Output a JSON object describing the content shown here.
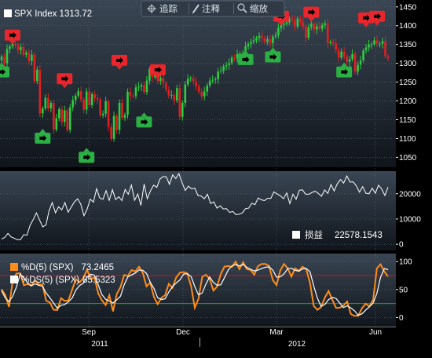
{
  "toolbar": {
    "track_label": "追踪",
    "annotate_label": "注释",
    "zoom_label": "缩放",
    "track_icon": "crosshair-icon",
    "annotate_icon": "pencil-icon",
    "zoom_icon": "magnifier-icon"
  },
  "colors": {
    "background": "#000000",
    "panel_gradient_top": "#3a4654",
    "panel_gradient_bottom": "#10151b",
    "up_candle": "#2ecc40",
    "down_candle": "#e02020",
    "pnl_line": "#ffffff",
    "stoch_d": "#ff8c1a",
    "stoch_ds": "#ffffff",
    "level_high": "#d01010",
    "level_low": "#11b011",
    "sell_marker": "#e8262b",
    "buy_marker": "#2cb045"
  },
  "chart_data": [
    {
      "type": "candlestick",
      "legend": "SPX Index",
      "last_value": "1313.72",
      "ylim": [
        1030,
        1460
      ],
      "yticks": [
        "1450",
        "1400",
        "1350",
        "1300",
        "1250",
        "1200",
        "1150",
        "1100",
        "1050"
      ],
      "closes": [
        1318,
        1300,
        1338,
        1345,
        1352,
        1349,
        1335,
        1343,
        1323,
        1328,
        1306,
        1323,
        1253,
        1283,
        1167,
        1180,
        1208,
        1180,
        1195,
        1124,
        1154,
        1178,
        1144,
        1175,
        1123,
        1183,
        1202,
        1214,
        1226,
        1204,
        1177,
        1225,
        1189,
        1218,
        1207,
        1204,
        1162,
        1166,
        1199,
        1131,
        1099,
        1160,
        1123,
        1195,
        1155,
        1163,
        1224,
        1214,
        1213,
        1236,
        1238,
        1242,
        1224,
        1254,
        1285,
        1263,
        1284,
        1253,
        1261,
        1247,
        1230,
        1215,
        1216,
        1201,
        1234,
        1158,
        1195,
        1244,
        1259,
        1260,
        1252,
        1239,
        1224,
        1212,
        1225,
        1241,
        1254,
        1256,
        1258,
        1278,
        1280,
        1292,
        1295,
        1301,
        1315,
        1313,
        1325,
        1326,
        1326,
        1345,
        1352,
        1357,
        1361,
        1367,
        1373,
        1367,
        1357,
        1364,
        1354,
        1371,
        1374,
        1394,
        1402,
        1405,
        1409,
        1419,
        1416,
        1398,
        1419,
        1409,
        1398,
        1368,
        1396,
        1405,
        1390,
        1398,
        1392,
        1402,
        1406,
        1354,
        1357,
        1353,
        1336,
        1315,
        1331,
        1318,
        1304,
        1311,
        1325,
        1278,
        1296,
        1308,
        1334,
        1342,
        1350,
        1351,
        1361,
        1352,
        1352,
        1359,
        1319,
        1313
      ],
      "x_month_labels": [
        "Sep",
        "Dec",
        "Mar",
        "Jun"
      ],
      "x_year_labels": [
        "2011",
        "2012"
      ],
      "signals": [
        {
          "type": "sell",
          "bar": 4,
          "price": 1352
        },
        {
          "type": "buy",
          "bar": 0,
          "price": 1300
        },
        {
          "type": "buy",
          "bar": 15,
          "price": 1124
        },
        {
          "type": "sell",
          "bar": 23,
          "price": 1236
        },
        {
          "type": "buy",
          "bar": 31,
          "price": 1073
        },
        {
          "type": "sell",
          "bar": 43,
          "price": 1285
        },
        {
          "type": "buy",
          "bar": 52,
          "price": 1167
        },
        {
          "type": "sell",
          "bar": 57,
          "price": 1260
        },
        {
          "type": "buy",
          "bar": 89,
          "price": 1333
        },
        {
          "type": "sell",
          "bar": 95,
          "price": 1422
        },
        {
          "type": "buy",
          "bar": 99,
          "price": 1340
        },
        {
          "type": "sell",
          "bar": 102,
          "price": 1402
        },
        {
          "type": "sell",
          "bar": 113,
          "price": 1413
        },
        {
          "type": "buy",
          "bar": 125,
          "price": 1300
        },
        {
          "type": "sell",
          "bar": 133,
          "price": 1398
        },
        {
          "type": "sell",
          "bar": 137,
          "price": 1402
        }
      ]
    },
    {
      "type": "line",
      "legend": "损益",
      "last_value": "22578.1543",
      "ylim": [
        -1500,
        28000
      ],
      "yticks": [
        "20000",
        "10000",
        "0"
      ],
      "values": [
        2100,
        2700,
        4300,
        2900,
        2400,
        1800,
        1900,
        3800,
        3600,
        7500,
        9800,
        12400,
        9600,
        6900,
        7600,
        13300,
        16500,
        12400,
        14800,
        13600,
        16500,
        12700,
        14700,
        16800,
        18000,
        15900,
        11300,
        13900,
        17800,
        16700,
        22000,
        18300,
        17800,
        21200,
        17400,
        21600,
        17700,
        18800,
        17300,
        21700,
        19800,
        23400,
        17400,
        19900,
        15400,
        23800,
        18000,
        21100,
        23400,
        22500,
        25800,
        26800,
        26700,
        23700,
        27400,
        26000,
        28000,
        24300,
        21300,
        23000,
        21900,
        22200,
        19300,
        19100,
        18000,
        19800,
        16100,
        16800,
        14300,
        15200,
        14000,
        14100,
        12600,
        13000,
        11700,
        11900,
        12400,
        14100,
        14300,
        16200,
        15700,
        18300,
        17600,
        17300,
        18200,
        18200,
        20700,
        19900,
        19200,
        18000,
        20300,
        16100,
        19800,
        17800,
        21400,
        21500,
        19800,
        19800,
        20500,
        21000,
        20100,
        19000,
        21500,
        20100,
        23600,
        21100,
        24000,
        25600,
        24200,
        27000,
        24600,
        24700,
        23100,
        20600,
        22800,
        20200,
        20000,
        22200,
        20200,
        23400,
        21900,
        19300,
        22600
      ]
    },
    {
      "type": "line",
      "ylim": [
        -12,
        110
      ],
      "yticks": [
        "100",
        "50",
        "0"
      ],
      "levels": [
        {
          "value": 75,
          "color": "#d01010"
        },
        {
          "value": 25,
          "color": "#11b011"
        }
      ],
      "series": [
        {
          "name": "%D(5) (SPX)",
          "last_value": "73.2465",
          "values": [
            50.5,
            40.3,
            19,
            65.8,
            78.5,
            79,
            57.7,
            59.9,
            57.4,
            66.6,
            59,
            58.9,
            29.9,
            27,
            13.8,
            13.4,
            34.6,
            29.7,
            30.8,
            50,
            68.7,
            62.6,
            70.6,
            85.3,
            69.3,
            71.4,
            43.4,
            30.9,
            22.3,
            39.8,
            11,
            42.3,
            54.3,
            75.9,
            74.3,
            84.7,
            82.4,
            90.5,
            79.8,
            55.8,
            62.4,
            36.7,
            24,
            35,
            39.9,
            60.2,
            53.2,
            71.6,
            80.2,
            81.3,
            78.7,
            55.9,
            17.4,
            33.4,
            72.8,
            76.4,
            69.2,
            48.1,
            55.2,
            77.8,
            91.1,
            91.9,
            90.5,
            99.7,
            86.6,
            98.6,
            86.6,
            84.9,
            76.6,
            91.8,
            95.7,
            95.7,
            92.2,
            66.9,
            57.8,
            83.6,
            95.7,
            87.8,
            73.1,
            87.9,
            83.3,
            90.8,
            86,
            62.1,
            21,
            13.6,
            18.7,
            35.6,
            47.3,
            32.1,
            17.3,
            17.4,
            21.4,
            28.5,
            6.1,
            2.8,
            3.4,
            16.7,
            24.6,
            19.9,
            32.1,
            87.8,
            95,
            82.1,
            73.2
          ]
        },
        {
          "name": "%DS(5) (SPX)",
          "last_value": "85.5323",
          "values": [
            47.6,
            35.1,
            28.4,
            38,
            54.4,
            77.8,
            70.8,
            62.2,
            56.3,
            60.3,
            57.6,
            55.9,
            43.7,
            35.4,
            26,
            16.6,
            21.8,
            23.3,
            28.2,
            34.8,
            49.2,
            57.2,
            61.4,
            71.9,
            77.3,
            75.5,
            58.4,
            41.2,
            32.4,
            29.5,
            25.9,
            31.8,
            38.1,
            58.5,
            72.6,
            76,
            79.6,
            84.9,
            84.3,
            78.7,
            63.1,
            51.9,
            35.2,
            32.1,
            33.4,
            45.5,
            55.1,
            61.6,
            67.2,
            77.6,
            78.1,
            73.1,
            55.3,
            40.4,
            44.1,
            60,
            72.4,
            62.8,
            57.6,
            58.4,
            71.3,
            85,
            92.2,
            94.7,
            92.1,
            94.8,
            89.7,
            86.3,
            83.1,
            84.6,
            87.5,
            89.9,
            90.3,
            84.7,
            72.1,
            72.7,
            77.8,
            87.3,
            88,
            84.4,
            82.7,
            86.9,
            87.6,
            81.7,
            56.4,
            34.6,
            20,
            23.3,
            32.1,
            36,
            34.1,
            26,
            17.9,
            20.9,
            17.3,
            12,
            4,
            6.7,
            13.4,
            19.3,
            25.8,
            43,
            71.7,
            87.4,
            85.5
          ]
        }
      ]
    }
  ]
}
